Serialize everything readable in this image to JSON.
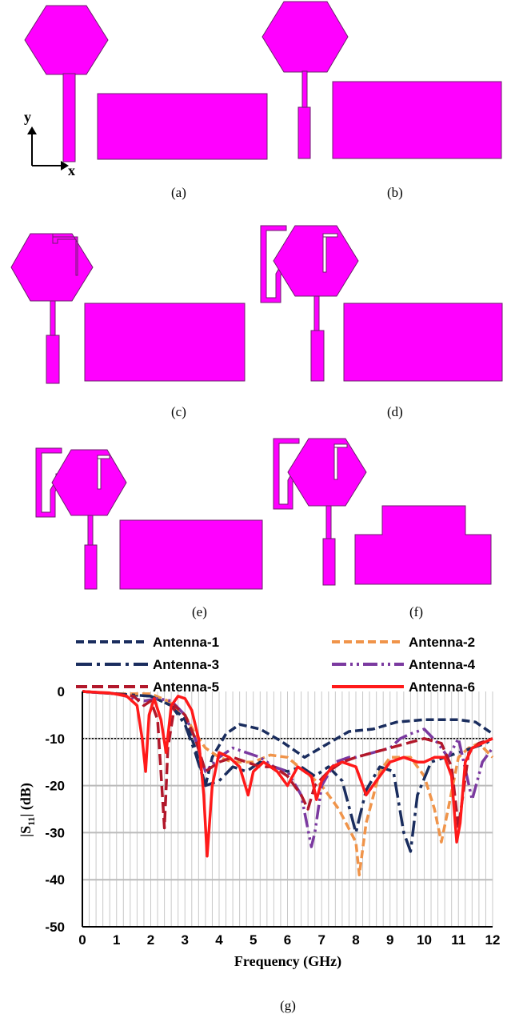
{
  "panels": {
    "a": {
      "caption": "(a)"
    },
    "b": {
      "caption": "(b)"
    },
    "c": {
      "caption": "(c)"
    },
    "d": {
      "caption": "(d)"
    },
    "e": {
      "caption": "(e)"
    },
    "f": {
      "caption": "(f)"
    },
    "g": {
      "caption": "(g)"
    }
  },
  "axes_labels": {
    "x": "x",
    "y": "y"
  },
  "colors": {
    "antenna_fill": "#ff00ff",
    "antenna_edge": "#6b1f6b"
  },
  "chart_data": {
    "type": "line",
    "xlabel": "Frequency (GHz)",
    "ylabel_main": "|S",
    "ylabel_sub": "11",
    "ylabel_tail": "| (dB)",
    "xlim": [
      0,
      12
    ],
    "ylim": [
      -50,
      0
    ],
    "xticks": [
      0,
      1,
      2,
      3,
      4,
      5,
      6,
      7,
      8,
      9,
      10,
      11,
      12
    ],
    "yticks": [
      0,
      -10,
      -20,
      -30,
      -40,
      -50
    ],
    "reference_line": -10,
    "grid": true,
    "legend_position": "top",
    "series": [
      {
        "name": "Antenna-1",
        "color": "#1a2d5e",
        "dash": "10,5",
        "x": [
          0,
          1,
          2,
          2.6,
          3,
          3.3,
          3.6,
          3.8,
          4.2,
          4.6,
          5.2,
          5.8,
          6.5,
          7.2,
          7.8,
          8.5,
          9.2,
          10,
          10.5,
          11,
          11.5,
          12
        ],
        "y": [
          0,
          -0.5,
          -1,
          -3,
          -6,
          -12,
          -20,
          -14,
          -9,
          -7,
          -8,
          -10.5,
          -14,
          -11,
          -8.5,
          -8,
          -6.5,
          -6,
          -6,
          -6,
          -6.5,
          -9
        ]
      },
      {
        "name": "Antenna-2",
        "color": "#f0944a",
        "dash": "10,5",
        "x": [
          0,
          1,
          2,
          2.5,
          3,
          3.3,
          3.6,
          4,
          4.4,
          5,
          5.5,
          6,
          6.5,
          7,
          7.5,
          8,
          8.1,
          8.3,
          8.7,
          9,
          9.3,
          9.6,
          10,
          10.3,
          10.5,
          10.7,
          11,
          11.3,
          11.6,
          12
        ],
        "y": [
          0,
          -0.5,
          -0.5,
          -2,
          -5,
          -9,
          -12,
          -14,
          -15,
          -15,
          -13.5,
          -14,
          -17,
          -20,
          -25,
          -32,
          -39,
          -28,
          -17,
          -14,
          -14,
          -14,
          -18,
          -25,
          -32,
          -25,
          -14,
          -12,
          -11,
          -14
        ]
      },
      {
        "name": "Antenna-3",
        "color": "#1a2d5e",
        "dash": "20,6,4,6",
        "x": [
          0,
          1,
          2,
          2.6,
          3,
          3.3,
          3.6,
          4,
          4.4,
          4.8,
          5.2,
          5.6,
          6,
          6.4,
          6.8,
          7.2,
          7.6,
          8,
          8.3,
          8.7,
          9.1,
          9.4,
          9.6,
          9.8,
          10.2,
          10.6,
          11,
          11.4,
          11.8,
          12
        ],
        "y": [
          0,
          -0.5,
          -1,
          -3,
          -7,
          -13,
          -20,
          -19,
          -16,
          -17,
          -15,
          -16,
          -17,
          -16,
          -18,
          -16,
          -19,
          -30,
          -21,
          -16,
          -17,
          -30,
          -34,
          -22,
          -15,
          -14,
          -13,
          -12,
          -11,
          -10
        ]
      },
      {
        "name": "Antenna-4",
        "color": "#7b3aa0",
        "dash": "18,5,3,5,3,5",
        "x": [
          0,
          1,
          1.8,
          2.2,
          2.6,
          3,
          3.3,
          3.6,
          4,
          4.4,
          4.8,
          5.2,
          5.6,
          6,
          6.4,
          6.7,
          6.8,
          7,
          7.4,
          7.8,
          8,
          8.5,
          9,
          9.3,
          9.6,
          10,
          10.4,
          10.7,
          11,
          11.4,
          11.7,
          12
        ],
        "y": [
          0,
          -0.5,
          -2,
          -1.5,
          -2,
          -5,
          -10,
          -17,
          -14,
          -12,
          -13,
          -14,
          -16,
          -17,
          -22,
          -33,
          -30,
          -20,
          -15,
          -14,
          -14,
          -13,
          -12,
          -10,
          -9,
          -8,
          -11,
          -14,
          -10,
          -23,
          -15,
          -12
        ]
      },
      {
        "name": "Antenna-5",
        "color": "#b2182b",
        "dash": "14,6",
        "x": [
          0,
          1,
          1.5,
          1.8,
          2,
          2.2,
          2.4,
          2.5,
          2.7,
          3,
          3.3,
          3.6,
          4,
          4.4,
          4.8,
          5.2,
          5.6,
          6,
          6.4,
          6.6,
          6.8,
          7.2,
          7.6,
          8,
          8.5,
          9,
          9.5,
          10,
          10.5,
          10.8,
          11,
          11.3,
          11.6,
          12
        ],
        "y": [
          0,
          -0.5,
          -1,
          -3,
          -2,
          -6,
          -29,
          -12,
          -3,
          -5,
          -10,
          -17,
          -15,
          -14,
          -15,
          -16,
          -16,
          -18,
          -22,
          -25,
          -20,
          -17,
          -15,
          -14,
          -13,
          -12,
          -11,
          -10,
          -11,
          -16,
          -29,
          -13,
          -11,
          -10
        ]
      },
      {
        "name": "Antenna-6",
        "color": "#ff1a1a",
        "dash": "",
        "x": [
          0,
          0.8,
          1.3,
          1.6,
          1.75,
          1.85,
          1.95,
          2.1,
          2.3,
          2.45,
          2.6,
          2.8,
          3.0,
          3.2,
          3.4,
          3.55,
          3.65,
          3.8,
          4.0,
          4.3,
          4.6,
          4.85,
          5.0,
          5.3,
          5.7,
          6.0,
          6.3,
          6.5,
          6.7,
          6.85,
          7.0,
          7.3,
          7.6,
          8.0,
          8.3,
          8.6,
          9.0,
          9.4,
          9.8,
          10.0,
          10.3,
          10.6,
          10.8,
          10.95,
          11.05,
          11.2,
          11.4,
          11.7,
          12
        ],
        "y": [
          0,
          -0.3,
          -1,
          -3,
          -10,
          -17,
          -5,
          -1.5,
          -6,
          -13,
          -3,
          -1,
          -1.5,
          -4,
          -10,
          -22,
          -35,
          -20,
          -13,
          -14,
          -16,
          -22,
          -17,
          -15,
          -17,
          -20,
          -16,
          -17,
          -18,
          -23,
          -19,
          -16,
          -15,
          -16,
          -22,
          -19,
          -15,
          -14,
          -15,
          -15,
          -14,
          -14,
          -18,
          -32,
          -28,
          -15,
          -12,
          -11,
          -10
        ]
      }
    ]
  }
}
